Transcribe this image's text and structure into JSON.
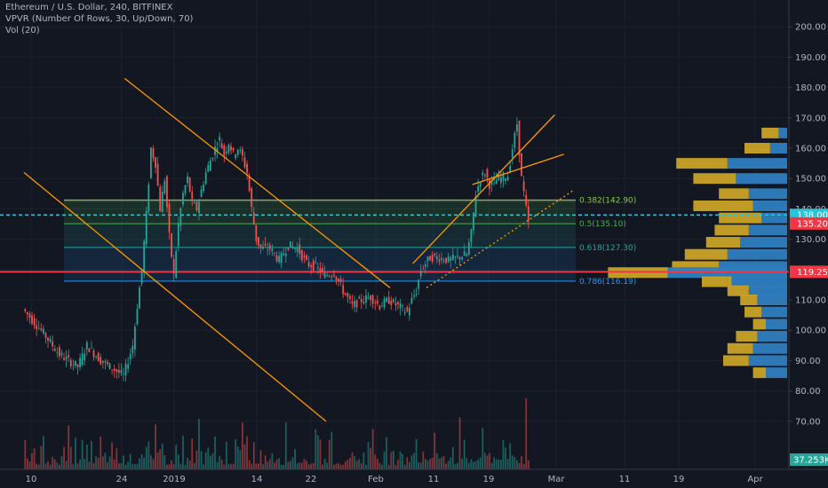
{
  "header": {
    "symbol_line": "Ethereum / U.S. Dollar, 240, BITFINEX",
    "vpvr_line": "VPVR (Number Of Rows, 30, Up/Down, 70)",
    "vol_line": "Vol (20)"
  },
  "colors": {
    "background": "#131722",
    "up": "#26a69a",
    "down": "#ef5350",
    "trendline": "#ff9800",
    "fib_dashed": "#26c6da",
    "support_red": "#f23645",
    "vpvr_up": "#2e7dbf",
    "vpvr_down": "#c9a227"
  },
  "chart_data": {
    "type": "candlestick",
    "title": "Ethereum / U.S. Dollar, 240, BITFINEX",
    "y_axis": {
      "ticks": [
        "200.00",
        "190.00",
        "180.00",
        "170.00",
        "160.00",
        "150.00",
        "140.00",
        "130.00",
        "120.00",
        "110.00",
        "100.00",
        "90.00",
        "80.00",
        "70.00"
      ],
      "range": [
        65,
        205
      ]
    },
    "x_axis": {
      "ticks": [
        "10",
        "24",
        "2019",
        "14",
        "22",
        "Feb",
        "11",
        "19",
        "Mar",
        "11",
        "19",
        "Apr"
      ]
    },
    "price_labels": [
      {
        "value": "138.00",
        "color": "#26c6da"
      },
      {
        "value": "135.20",
        "color": "#f23645"
      },
      {
        "value": "119.25",
        "color": "#f23645"
      }
    ],
    "volume_label": "37.253K",
    "price_path": [
      [
        0,
        107
      ],
      [
        4,
        100
      ],
      [
        8,
        92
      ],
      [
        12,
        88
      ],
      [
        14,
        95
      ],
      [
        17,
        90
      ],
      [
        20,
        87
      ],
      [
        22,
        85
      ],
      [
        24,
        95
      ],
      [
        25,
        108
      ],
      [
        26,
        120
      ],
      [
        27,
        138
      ],
      [
        28,
        160
      ],
      [
        29,
        155
      ],
      [
        30,
        140
      ],
      [
        31,
        150
      ],
      [
        32,
        131
      ],
      [
        33,
        118
      ],
      [
        34,
        135
      ],
      [
        35,
        145
      ],
      [
        36,
        150
      ],
      [
        37,
        142
      ],
      [
        38,
        140
      ],
      [
        40,
        152
      ],
      [
        42,
        160
      ],
      [
        43,
        163
      ],
      [
        44,
        158
      ],
      [
        45,
        162
      ],
      [
        46,
        158
      ],
      [
        47,
        160
      ],
      [
        48,
        157
      ],
      [
        49,
        152
      ],
      [
        50,
        140
      ],
      [
        51,
        130
      ],
      [
        52,
        127
      ],
      [
        54,
        127
      ],
      [
        56,
        123
      ],
      [
        58,
        128
      ],
      [
        60,
        127
      ],
      [
        62,
        122
      ],
      [
        64,
        121
      ],
      [
        66,
        118
      ],
      [
        68,
        119
      ],
      [
        70,
        113
      ],
      [
        72,
        108
      ],
      [
        74,
        110
      ],
      [
        76,
        111
      ],
      [
        78,
        108
      ],
      [
        80,
        110
      ],
      [
        82,
        108
      ],
      [
        84,
        106
      ],
      [
        85,
        110
      ],
      [
        86,
        113
      ],
      [
        87,
        120
      ],
      [
        89,
        124
      ],
      [
        91,
        124
      ],
      [
        93,
        123
      ],
      [
        95,
        124
      ],
      [
        97,
        125
      ],
      [
        98,
        132
      ],
      [
        99,
        145
      ],
      [
        100,
        150
      ],
      [
        101,
        152
      ],
      [
        102,
        148
      ],
      [
        104,
        150
      ],
      [
        106,
        151
      ],
      [
        107,
        160
      ],
      [
        108,
        168
      ],
      [
        109,
        150
      ],
      [
        110,
        140
      ],
      [
        110.5,
        135.2
      ]
    ],
    "fib_levels": [
      {
        "ratio": "0.382",
        "price": 142.9,
        "label": "0.382(142.90)",
        "color": "#8bc34a"
      },
      {
        "ratio": "0.5",
        "price": 135.1,
        "label": "0.5(135.10)",
        "color": "#4caf50"
      },
      {
        "ratio": "0.618",
        "price": 127.3,
        "label": "0.618(127.30)",
        "color": "#26a69a"
      },
      {
        "ratio": "0.786",
        "price": 116.19,
        "label": "0.786(116.19)",
        "color": "#2196f3"
      }
    ],
    "horizontal_lines": [
      {
        "price": 138.0,
        "style": "dashed",
        "color": "#26c6da"
      },
      {
        "price": 119.25,
        "style": "solid",
        "color": "#f23645"
      }
    ],
    "trendlines": [
      {
        "name": "",
        "from": [
          0,
          152
        ],
        "to": [
          66,
          70
        ],
        "color": "#ff9800",
        "style": "solid"
      },
      {
        "name": "",
        "from": [
          22,
          183
        ],
        "to": [
          80,
          114
        ],
        "color": "#ff9800",
        "style": "solid"
      },
      {
        "name": "",
        "from": [
          85,
          122
        ],
        "to": [
          116,
          171
        ],
        "color": "#ff9800",
        "style": "solid"
      },
      {
        "name": "",
        "from": [
          98,
          148
        ],
        "to": [
          118,
          158
        ],
        "color": "#ff9800",
        "style": "solid"
      },
      {
        "name": "",
        "from": [
          88,
          114
        ],
        "to": [
          120,
          146
        ],
        "color": "#ff9800",
        "style": "dotted"
      }
    ],
    "vpvr": [
      [
        165,
        2,
        4
      ],
      [
        160,
        4,
        6
      ],
      [
        155,
        14,
        12
      ],
      [
        150,
        12,
        10
      ],
      [
        145,
        9,
        7
      ],
      [
        141,
        8,
        14
      ],
      [
        137,
        6,
        10
      ],
      [
        133,
        9,
        8
      ],
      [
        129,
        11,
        8
      ],
      [
        125,
        14,
        10
      ],
      [
        121,
        16,
        11
      ],
      [
        119,
        28,
        14
      ],
      [
        116,
        13,
        7
      ],
      [
        113,
        9,
        5
      ],
      [
        110,
        7,
        4
      ],
      [
        106,
        6,
        4
      ],
      [
        102,
        5,
        3
      ],
      [
        98,
        7,
        5
      ],
      [
        94,
        8,
        6
      ],
      [
        90,
        9,
        6
      ],
      [
        86,
        5,
        3
      ]
    ],
    "volume": {
      "last": 37253
    }
  }
}
